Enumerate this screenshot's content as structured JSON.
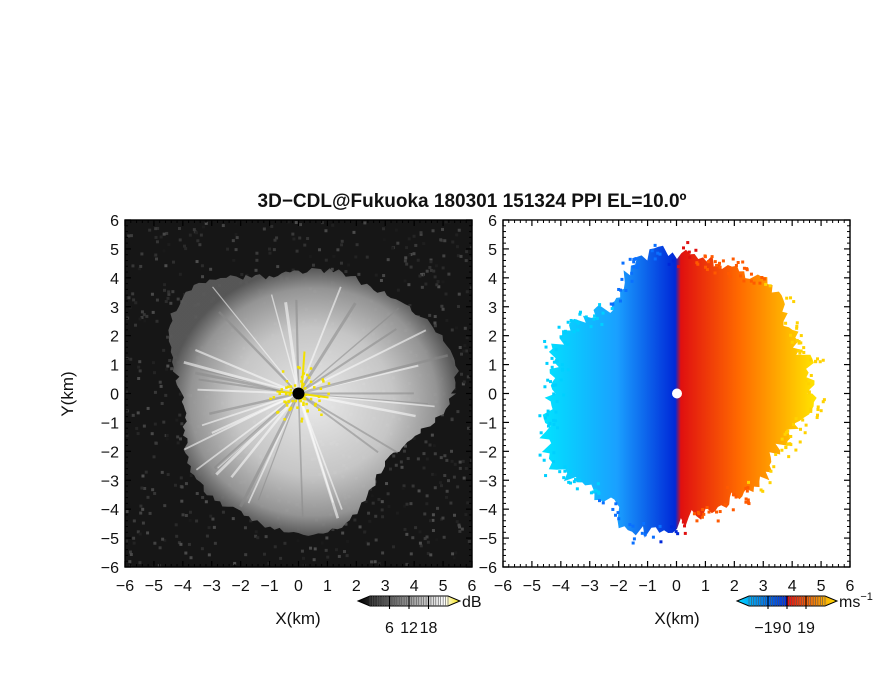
{
  "chart_data": [
    {
      "type": "heatmap",
      "panel": "left",
      "title": "3D−CDL@Fukuoka 180301 151324 PPI EL=10.0º",
      "xlabel": "X(km)",
      "ylabel": "Y(km)",
      "xlim": [
        -6,
        6
      ],
      "ylim": [
        -6,
        6
      ],
      "x_ticks": [
        "−6",
        "−5",
        "−4",
        "−3",
        "−2",
        "−1",
        "0",
        "1",
        "2",
        "3",
        "4",
        "5",
        "6"
      ],
      "y_ticks": [
        "−6",
        "−5",
        "−4",
        "−3",
        "−2",
        "−1",
        "0",
        "1",
        "2",
        "3",
        "4",
        "5",
        "6"
      ],
      "colorbar": {
        "label": "dB",
        "ticks": [
          "6",
          "12",
          "18"
        ],
        "colors": [
          "#000000",
          "#ffffff",
          "#f2e000"
        ]
      }
    },
    {
      "type": "heatmap",
      "panel": "right",
      "xlabel": "X(km)",
      "xlim": [
        -6,
        6
      ],
      "ylim": [
        -6,
        6
      ],
      "x_ticks": [
        "−6",
        "−5",
        "−4",
        "−3",
        "−2",
        "−1",
        "0",
        "1",
        "2",
        "3",
        "4",
        "5",
        "6"
      ],
      "y_ticks": [
        "−6",
        "−5",
        "−4",
        "−3",
        "−2",
        "−1",
        "0",
        "1",
        "2",
        "3",
        "4",
        "5",
        "6"
      ],
      "colorbar": {
        "label": "ms",
        "label_sup": "−1",
        "ticks": [
          "−19",
          "0",
          "19"
        ],
        "colors": [
          "#00d8ff",
          "#0030e0",
          "#e81010",
          "#ffe000"
        ]
      }
    }
  ]
}
